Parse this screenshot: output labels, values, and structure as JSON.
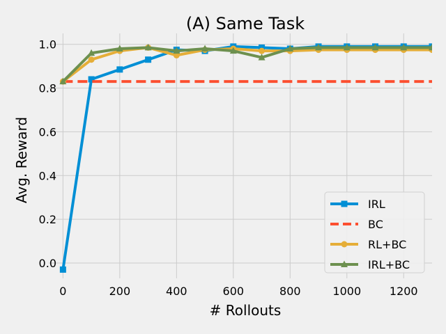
{
  "chart_data": {
    "type": "line",
    "title": "(A) Same Task",
    "xlabel": "# Rollouts",
    "ylabel": "Avg. Reward",
    "xlim": [
      -50,
      1300
    ],
    "ylim": [
      -0.07,
      1.05
    ],
    "xticks": [
      0,
      200,
      400,
      600,
      800,
      1000,
      1200
    ],
    "yticks": [
      0.0,
      0.2,
      0.4,
      0.6,
      0.8,
      1.0
    ],
    "xtick_labels": [
      "0",
      "200",
      "400",
      "600",
      "800",
      "1000",
      "1200"
    ],
    "ytick_labels": [
      "0.0",
      "0.2",
      "0.4",
      "0.6",
      "0.8",
      "1.0"
    ],
    "grid": true,
    "legend_position": "bottom-right",
    "series": [
      {
        "name": "IRL",
        "color": "#008fd5",
        "marker": "square",
        "dashed": false,
        "x": [
          0,
          100,
          200,
          300,
          400,
          500,
          600,
          700,
          800,
          900,
          1000,
          1100,
          1200,
          1300
        ],
        "y": [
          -0.03,
          0.84,
          0.885,
          0.93,
          0.975,
          0.97,
          0.99,
          0.985,
          0.98,
          0.99,
          0.99,
          0.99,
          0.99,
          0.99
        ]
      },
      {
        "name": "BC",
        "color": "#fc4f30",
        "marker": "none",
        "dashed": true,
        "x": [
          0,
          1300
        ],
        "y": [
          0.83,
          0.83
        ]
      },
      {
        "name": "RL+BC",
        "color": "#e5ae38",
        "marker": "circle",
        "dashed": false,
        "x": [
          0,
          100,
          200,
          300,
          400,
          500,
          600,
          700,
          800,
          900,
          1000,
          1100,
          1200,
          1300
        ],
        "y": [
          0.83,
          0.93,
          0.97,
          0.985,
          0.95,
          0.975,
          0.98,
          0.97,
          0.97,
          0.975,
          0.975,
          0.975,
          0.975,
          0.975
        ]
      },
      {
        "name": "IRL+BC",
        "color": "#6d904f",
        "marker": "triangle",
        "dashed": false,
        "x": [
          0,
          100,
          200,
          300,
          400,
          500,
          600,
          700,
          800,
          900,
          1000,
          1100,
          1200,
          1300
        ],
        "y": [
          0.83,
          0.96,
          0.98,
          0.985,
          0.97,
          0.98,
          0.97,
          0.94,
          0.98,
          0.985,
          0.985,
          0.985,
          0.985,
          0.985
        ]
      }
    ]
  }
}
